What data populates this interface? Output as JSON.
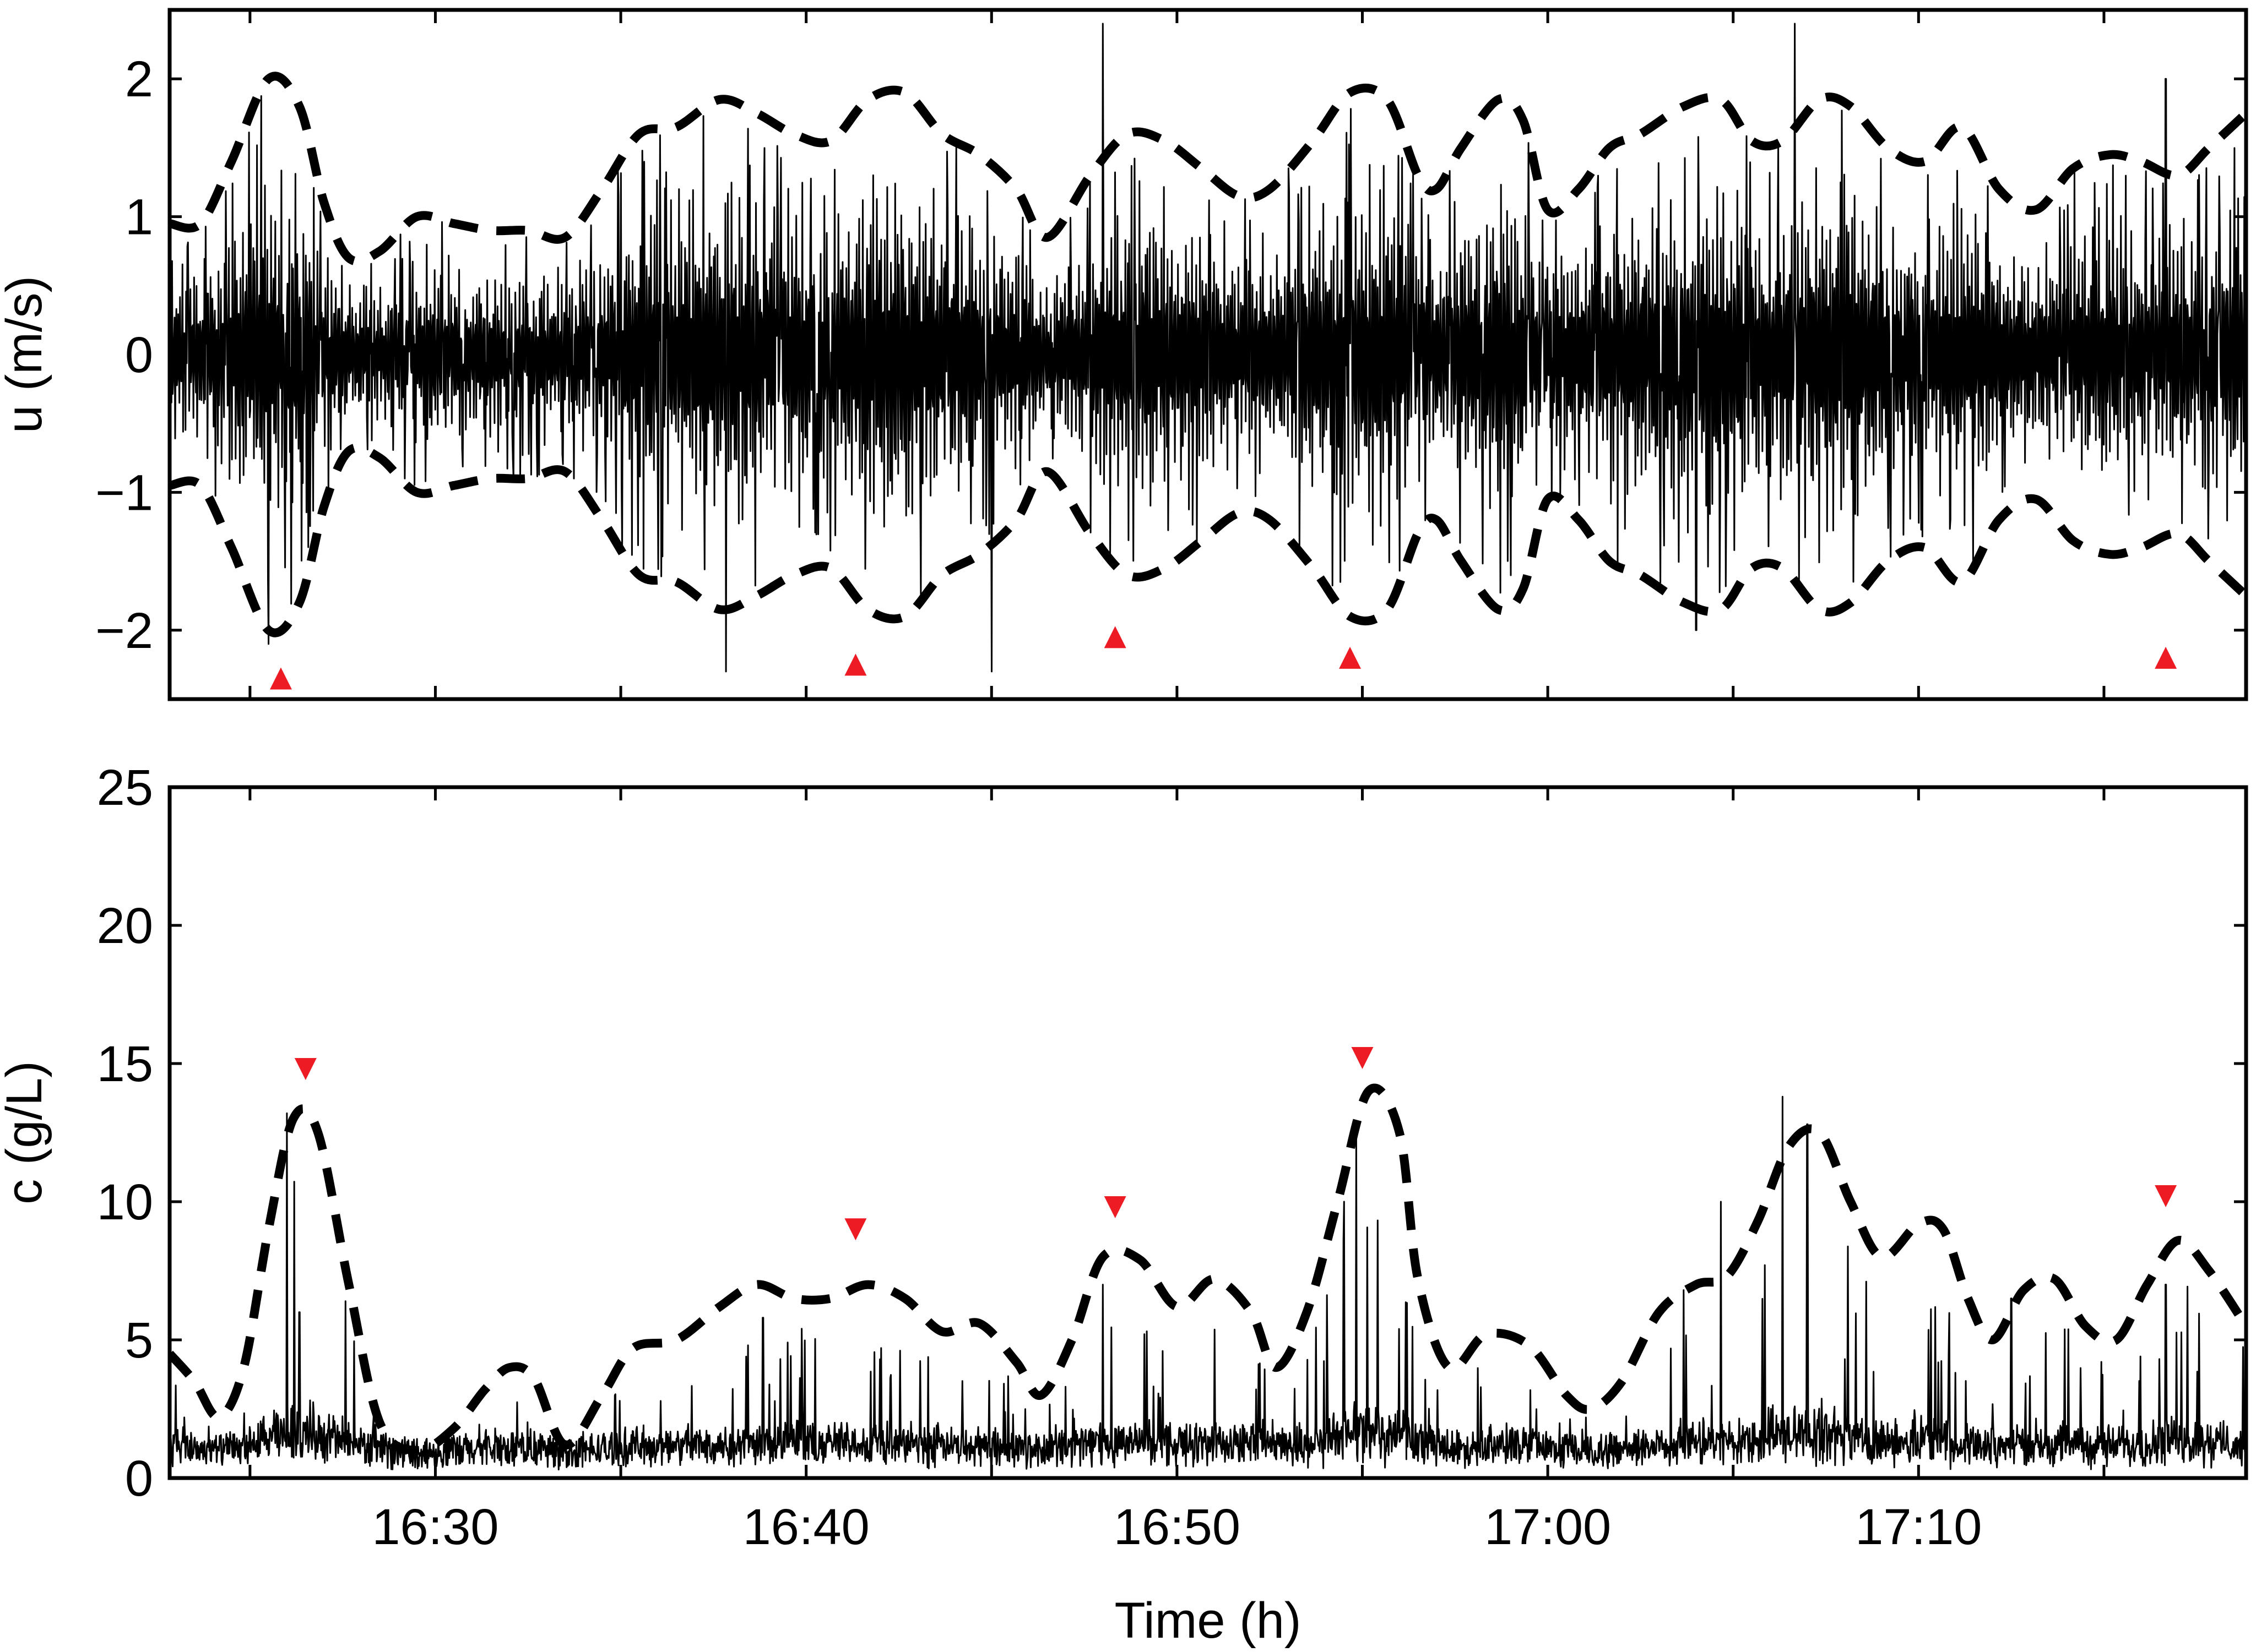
{
  "chart_data": [
    {
      "type": "line",
      "ylabel": "u (m/s)",
      "xlabel": "",
      "x_unit": "minutes",
      "xlim": [
        "16:22:50",
        "17:18:50"
      ],
      "ylim": [
        -2.5,
        2.5
      ],
      "yticks": [
        2,
        1,
        0,
        -1,
        -2
      ],
      "ytick_labels": [
        "2",
        "1",
        "0",
        "−1",
        "−2"
      ],
      "xticks": [
        "16:30",
        "16:40",
        "16:50",
        "17:00",
        "17:10"
      ],
      "xtick_labels": [
        "",
        "",
        "",
        "",
        ""
      ],
      "signal": {
        "style": "solid thin black",
        "description_values": "oscillating velocity record",
        "sample_peaks": [
          {
            "t": "16:25:30",
            "v": 2.2
          },
          {
            "t": "16:25:30",
            "v": -2.1
          },
          {
            "t": "16:48:00",
            "v": 2.4
          },
          {
            "t": "16:45:00",
            "v": -2.3
          },
          {
            "t": "17:06:40",
            "v": 2.4
          },
          {
            "t": "17:04:00",
            "v": -2.0
          },
          {
            "t": "16:37:50",
            "v": -2.3
          },
          {
            "t": "17:16:40",
            "v": 2.0
          }
        ]
      },
      "envelope_upper": {
        "style": "dashed",
        "x": [
          "16:22:50",
          "16:23:40",
          "16:24:30",
          "16:25:30",
          "16:26:20",
          "16:27:00",
          "16:27:40",
          "16:28:30",
          "16:29:30",
          "16:30:30",
          "16:31:30",
          "16:32:30",
          "16:33:30",
          "16:34:30",
          "16:35:30",
          "16:36:30",
          "16:37:40",
          "16:38:40",
          "16:39:40",
          "16:40:40",
          "16:41:40",
          "16:42:40",
          "16:43:40",
          "16:44:40",
          "16:45:40",
          "16:46:30",
          "16:47:40",
          "16:48:40",
          "16:49:40",
          "16:50:40",
          "16:51:40",
          "16:52:30",
          "16:53:40",
          "16:54:40",
          "16:55:40",
          "16:56:30",
          "16:57:00",
          "16:57:40",
          "16:58:40",
          "16:59:20",
          "17:00:00",
          "17:00:50",
          "17:01:40",
          "17:02:30",
          "17:03:40",
          "17:04:40",
          "17:05:30",
          "17:06:20",
          "17:07:20",
          "17:08:10",
          "17:09:10",
          "17:10:10",
          "17:11:10",
          "17:12:10",
          "17:13:10",
          "17:14:10",
          "17:15:10",
          "17:16:00",
          "17:17:00",
          "17:17:50",
          "17:18:50"
        ],
        "values": [
          0.95,
          0.95,
          1.4,
          2.0,
          1.8,
          1.1,
          0.7,
          0.75,
          1.0,
          0.95,
          0.9,
          0.9,
          0.85,
          1.2,
          1.6,
          1.65,
          1.85,
          1.75,
          1.6,
          1.55,
          1.85,
          1.9,
          1.6,
          1.45,
          1.2,
          0.85,
          1.3,
          1.6,
          1.55,
          1.35,
          1.15,
          1.2,
          1.55,
          1.9,
          1.85,
          1.3,
          1.2,
          1.5,
          1.85,
          1.7,
          1.05,
          1.2,
          1.5,
          1.6,
          1.8,
          1.85,
          1.55,
          1.55,
          1.85,
          1.8,
          1.5,
          1.4,
          1.65,
          1.2,
          1.05,
          1.35,
          1.45,
          1.4,
          1.3,
          1.5,
          1.75
        ]
      },
      "markers": {
        "shape": "triangle-up",
        "color": "#ed1c24",
        "x": [
          "16:25:50",
          "16:41:20",
          "16:48:20",
          "16:54:40",
          "17:16:40"
        ],
        "y": [
          -2.35,
          -2.25,
          -2.05,
          -2.2,
          -2.2
        ]
      }
    },
    {
      "type": "line",
      "ylabel": "c (g/L)",
      "xlabel": "Time (h)",
      "x_unit": "minutes",
      "xlim": [
        "16:22:50",
        "17:18:50"
      ],
      "ylim": [
        0,
        25
      ],
      "yticks": [
        25,
        20,
        15,
        10,
        5,
        0
      ],
      "ytick_labels": [
        "25",
        "20",
        "15",
        "10",
        "5",
        "0"
      ],
      "xticks": [
        "16:30",
        "16:40",
        "16:50",
        "17:00",
        "17:10"
      ],
      "xtick_labels": [
        "16:30",
        "16:40",
        "16:50",
        "17:00",
        "17:10"
      ],
      "signal": {
        "style": "solid thin black",
        "baseline_range": [
          0.3,
          3.5
        ],
        "spikes": [
          {
            "t": "16:26:00",
            "v": 13.2
          },
          {
            "t": "16:26:20",
            "v": 6.0
          },
          {
            "t": "16:38:50",
            "v": 5.8
          },
          {
            "t": "16:48:00",
            "v": 7.0
          },
          {
            "t": "16:54:30",
            "v": 10.0
          },
          {
            "t": "16:54:50",
            "v": 12.4
          },
          {
            "t": "17:03:40",
            "v": 6.8
          },
          {
            "t": "17:04:40",
            "v": 10.0
          },
          {
            "t": "17:06:20",
            "v": 13.8
          },
          {
            "t": "17:07:00",
            "v": 12.8
          },
          {
            "t": "17:12:30",
            "v": 6.5
          },
          {
            "t": "17:16:40",
            "v": 7.0
          }
        ]
      },
      "envelope_upper": {
        "style": "dashed",
        "x": [
          "16:22:50",
          "16:23:30",
          "16:24:10",
          "16:24:50",
          "16:25:30",
          "16:26:10",
          "16:26:50",
          "16:27:40",
          "16:28:30",
          "16:29:30",
          "16:30:30",
          "16:31:20",
          "16:32:00",
          "16:32:40",
          "16:33:30",
          "16:34:30",
          "16:35:20",
          "16:36:30",
          "16:37:40",
          "16:38:40",
          "16:39:40",
          "16:40:40",
          "16:41:40",
          "16:42:40",
          "16:43:40",
          "16:44:40",
          "16:45:40",
          "16:46:20",
          "16:47:10",
          "16:48:00",
          "16:49:00",
          "16:50:00",
          "16:51:00",
          "16:52:00",
          "16:52:40",
          "16:53:30",
          "16:54:20",
          "16:55:10",
          "16:56:00",
          "16:56:30",
          "16:57:20",
          "16:58:20",
          "16:59:30",
          "17:00:30",
          "17:01:10",
          "17:02:00",
          "17:03:00",
          "17:04:00",
          "17:04:50",
          "17:05:40",
          "17:06:30",
          "17:07:20",
          "17:08:10",
          "17:09:00",
          "17:10:00",
          "17:10:40",
          "17:11:20",
          "17:12:00",
          "17:12:50",
          "17:13:40",
          "17:14:30",
          "17:15:20",
          "17:16:10",
          "17:17:00",
          "17:17:50",
          "17:18:50"
        ],
        "values": [
          4.5,
          3.5,
          2.2,
          4.0,
          9.0,
          13.0,
          12.5,
          7.0,
          2.0,
          1.0,
          1.8,
          3.2,
          4.0,
          3.6,
          1.2,
          3.0,
          4.7,
          5.0,
          6.2,
          7.0,
          6.5,
          6.5,
          7.0,
          6.5,
          5.3,
          5.6,
          4.2,
          3.0,
          5.0,
          8.0,
          7.9,
          6.2,
          7.2,
          6.0,
          4.0,
          6.0,
          10.0,
          14.0,
          12.5,
          7.2,
          4.0,
          5.2,
          4.8,
          3.0,
          2.5,
          3.5,
          6.0,
          7.0,
          7.3,
          9.3,
          12.0,
          12.5,
          10.0,
          8.0,
          9.2,
          9.0,
          6.5,
          5.0,
          6.8,
          7.2,
          5.5,
          5.0,
          7.0,
          8.6,
          7.5,
          5.5
        ]
      },
      "markers": {
        "shape": "triangle-down",
        "color": "#ed1c24",
        "x": [
          "16:26:30",
          "16:41:20",
          "16:48:20",
          "16:55:00",
          "17:16:40"
        ],
        "y": [
          14.8,
          9.0,
          9.8,
          15.2,
          10.2
        ]
      }
    }
  ]
}
